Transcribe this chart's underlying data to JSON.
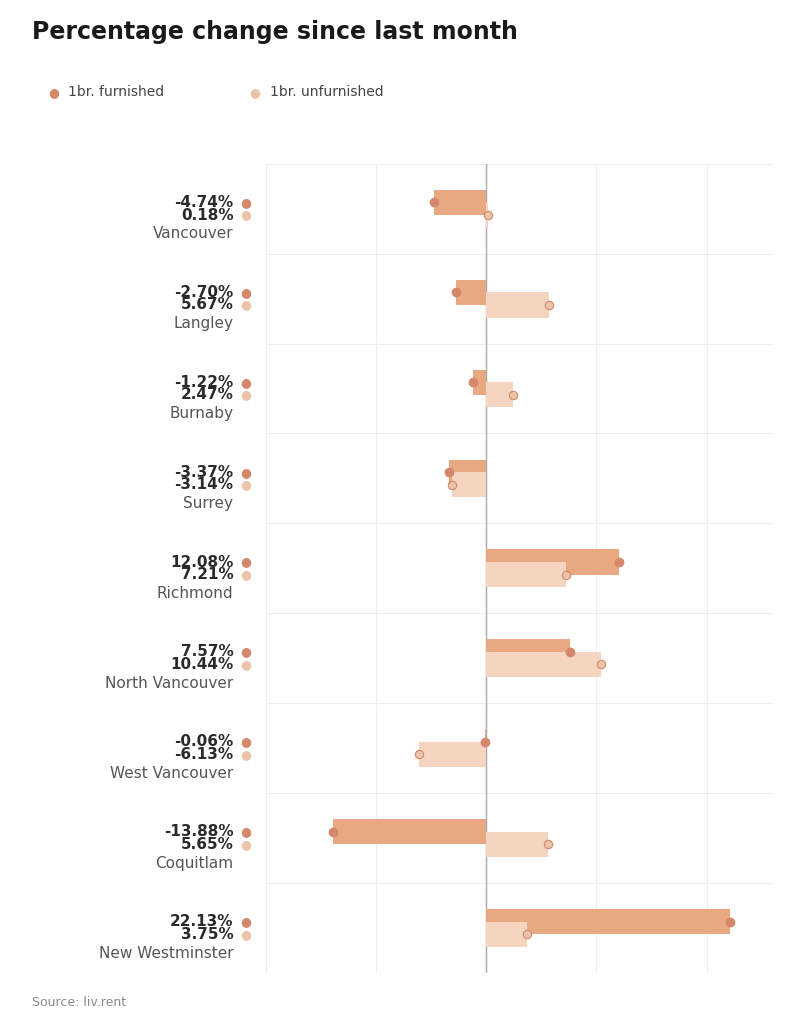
{
  "title": "Percentage change since last month",
  "legend_furnished": "1br. furnished",
  "legend_unfurnished": "1br. unfurnished",
  "source": "Source: liv.rent",
  "cities": [
    "Vancouver",
    "Langley",
    "Burnaby",
    "Surrey",
    "Richmond",
    "North Vancouver",
    "West Vancouver",
    "Coquitlam",
    "New Westminster"
  ],
  "furnished": [
    -4.74,
    -2.7,
    -1.22,
    -3.37,
    12.08,
    7.57,
    -0.06,
    -13.88,
    22.13
  ],
  "unfurnished": [
    0.18,
    5.67,
    2.47,
    -3.14,
    7.21,
    10.44,
    -6.13,
    5.65,
    3.75
  ],
  "color_furnished": "#e8a882",
  "color_unfurnished": "#f5d5c0",
  "color_dot_furnished": "#d4876a",
  "color_dot_unfurnished": "#ecc4aa",
  "background_color": "#ffffff",
  "grid_color": "#eeecec",
  "vline_color": "#aaaaaa",
  "title_fontsize": 17,
  "pct_fontsize": 11,
  "city_fontsize": 11,
  "source_fontsize": 9,
  "xlim": [
    -20,
    26
  ],
  "bar_height": 0.28,
  "bar_gap": 0.14
}
